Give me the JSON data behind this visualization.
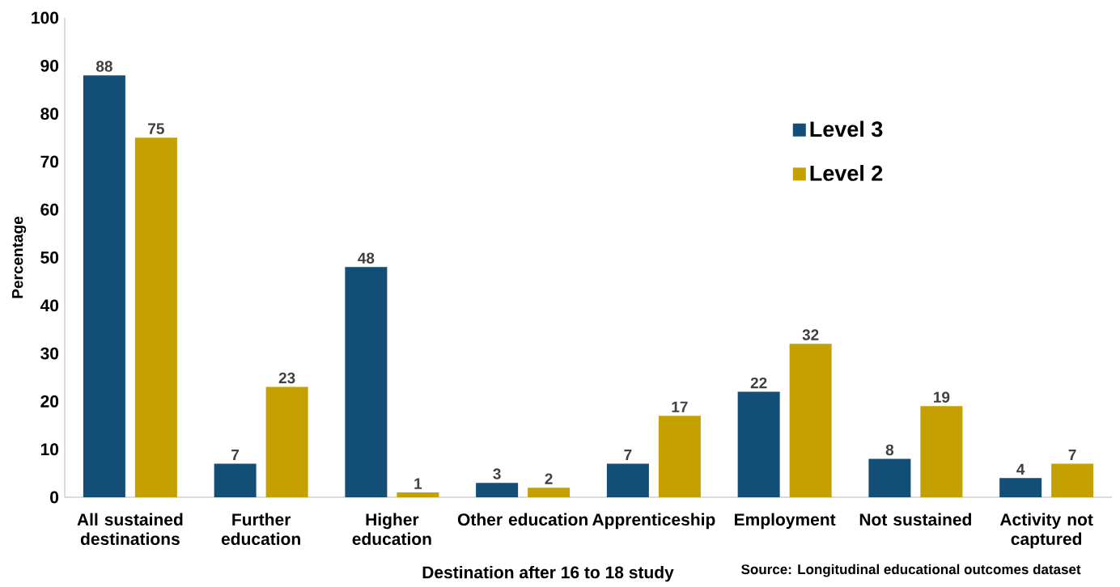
{
  "chart_data": {
    "type": "bar",
    "categories": [
      "All sustained destinations",
      "Further education",
      "Higher education",
      "Other education",
      "Apprenticeship",
      "Employment",
      "Not sustained",
      "Activity not captured"
    ],
    "series": [
      {
        "name": "Level 3",
        "color": "#124e75",
        "values": [
          88,
          7,
          48,
          3,
          7,
          22,
          8,
          4
        ]
      },
      {
        "name": "Level 2",
        "color": "#c4a000",
        "values": [
          75,
          23,
          1,
          2,
          17,
          32,
          19,
          7
        ]
      }
    ],
    "xlabel": "Destination after 16 to 18 study",
    "ylabel": "Percentage",
    "ylim": [
      0,
      100
    ],
    "yticks": [
      0,
      10,
      20,
      30,
      40,
      50,
      60,
      70,
      80,
      90,
      100
    ],
    "legend": "right",
    "data_labels": true,
    "annotations": [
      "Source: Longitudinal educational outcomes dataset"
    ]
  }
}
